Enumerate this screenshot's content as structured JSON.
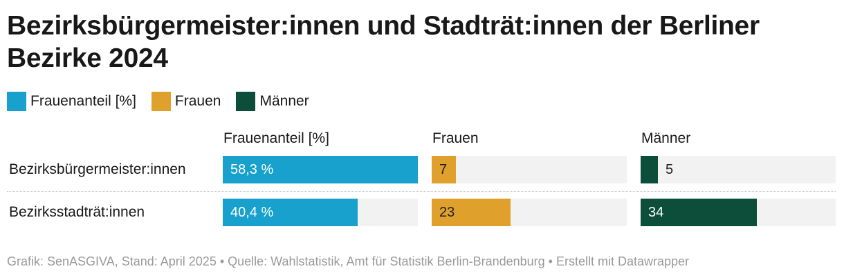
{
  "title": "Bezirksbürgermeister:innen und Stadträt:innen der Berliner Bezirke 2024",
  "legend": [
    {
      "label": "Frauenanteil [%]",
      "color": "#18a1cd"
    },
    {
      "label": "Frauen",
      "color": "#e0a02c"
    },
    {
      "label": "Männer",
      "color": "#0c4e39"
    }
  ],
  "columns": [
    "Frauenanteil [%]",
    "Frauen",
    "Männer"
  ],
  "rows": [
    {
      "label": "Bezirksbürgermeister:innen",
      "frauenanteil_text": "58,3 %",
      "frauen_text": "7",
      "maenner_text": "5"
    },
    {
      "label": "Bezirksstadträt:innen",
      "frauenanteil_text": "40,4 %",
      "frauen_text": "23",
      "maenner_text": "34"
    }
  ],
  "chart_data": {
    "type": "bar",
    "orientation": "horizontal",
    "categories": [
      "Bezirksbürgermeister:innen",
      "Bezirksstadträt:innen"
    ],
    "series": [
      {
        "name": "Frauenanteil [%]",
        "values": [
          58.3,
          40.4
        ],
        "max": 58.3,
        "color": "#18a1cd"
      },
      {
        "name": "Frauen",
        "values": [
          7,
          23
        ],
        "max": 57,
        "color": "#e0a02c"
      },
      {
        "name": "Männer",
        "values": [
          5,
          34
        ],
        "max": 57,
        "color": "#0c4e39"
      }
    ],
    "title": "Bezirksbürgermeister:innen und Stadträt:innen der Berliner Bezirke 2024"
  },
  "footer": "Grafik: SenASGIVA, Stand: April 2025 • Quelle: Wahlstatistik, Amt für Statistik Berlin-Brandenburg • Erstellt mit Datawrapper"
}
